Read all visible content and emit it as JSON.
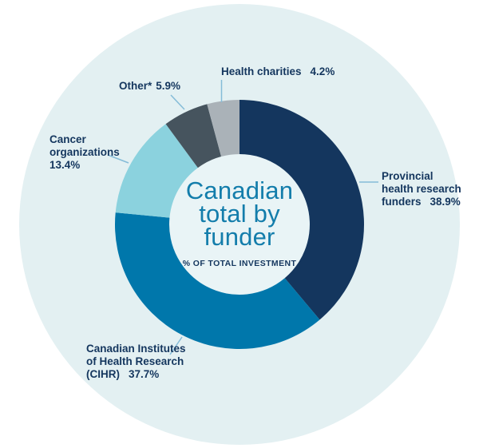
{
  "colors": {
    "page_background": "#ffffff",
    "backdrop_circle": "#e3f0f2",
    "donut_hole": "#e9f4f6",
    "title_text": "#137dab",
    "label_text": "#14365e",
    "leader_line": "#85bcd8"
  },
  "center": {
    "title_lines": [
      "Canadian",
      "total by",
      "funder"
    ],
    "subtitle": "% OF TOTAL INVESTMENT"
  },
  "callouts": {
    "health_charities": {
      "name": "Health charities",
      "pct": "4.2%"
    },
    "other": {
      "name": "Other*",
      "pct": "5.9%"
    },
    "cancer": {
      "name_lines": [
        "Cancer",
        "organizations"
      ],
      "pct": "13.4%"
    },
    "provincial": {
      "name_lines": [
        "Provincial",
        "health research",
        "funders"
      ],
      "pct": "38.9%"
    },
    "cihr": {
      "name_lines": [
        "Canadian Institutes",
        "of Health Research",
        "(CIHR)"
      ],
      "pct": "37.7%"
    }
  },
  "chart_data": {
    "type": "pie",
    "variant": "donut",
    "title": "Canadian total by funder",
    "subtitle": "% OF TOTAL INVESTMENT",
    "start_angle_deg": 0,
    "direction": "clockwise",
    "legend_position": "callouts",
    "series": [
      {
        "id": "provincial",
        "label": "Provincial health research funders",
        "value": 38.9,
        "color": "#14365e"
      },
      {
        "id": "cihr",
        "label": "Canadian Institutes of Health Research (CIHR)",
        "value": 37.7,
        "color": "#0077ab"
      },
      {
        "id": "cancer",
        "label": "Cancer organizations",
        "value": 13.4,
        "color": "#8bd2de"
      },
      {
        "id": "other",
        "label": "Other*",
        "value": 5.9,
        "color": "#46545e"
      },
      {
        "id": "health_charities",
        "label": "Health charities",
        "value": 4.2,
        "color": "#aab2b8"
      }
    ]
  }
}
